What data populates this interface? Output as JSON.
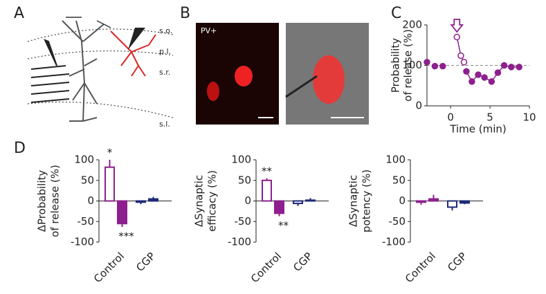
{
  "panel_labels": [
    "A",
    "B",
    "C",
    "D"
  ],
  "layer_labels": [
    "s.o.",
    "p.l.",
    "s.r.",
    "s.l."
  ],
  "image_label": "PV+",
  "chart_data": [
    {
      "type": "scatter",
      "ylabel": [
        "Probability",
        "of release (%)"
      ],
      "xlabel": "Time (min)",
      "xlim": [
        -3,
        10
      ],
      "xticks": [
        0,
        5,
        10
      ],
      "ylim": [
        0,
        200
      ],
      "yticks": [
        0,
        100,
        200
      ],
      "reference_line": 100,
      "arrow_x": 0.8,
      "color": "#8e1f8e",
      "series": [
        {
          "x": [
            -3,
            -2,
            -1
          ],
          "values": [
            108,
            98,
            98
          ],
          "marker": "filled",
          "connect": false
        },
        {
          "x": [
            0.8,
            1.3,
            1.7
          ],
          "values": [
            170,
            124,
            108
          ],
          "marker": "open",
          "connect": true
        },
        {
          "x": [
            2,
            2.7,
            3.5,
            4.3,
            5.2,
            6,
            6.8,
            7.7,
            8.7
          ],
          "values": [
            85,
            60,
            77,
            70,
            60,
            82,
            100,
            96,
            96
          ],
          "marker": "filled",
          "connect": true
        }
      ]
    },
    {
      "type": "bar",
      "ylabel": [
        "ΔProbability",
        "of release (%)"
      ],
      "categories": [
        "Control",
        "CGP"
      ],
      "colors": [
        "#8e1f8e",
        "#1e2a78"
      ],
      "ylim": [
        -100,
        100
      ],
      "yticks": [
        -100,
        -50,
        0,
        50,
        100
      ],
      "series": [
        {
          "fill": "open",
          "values": [
            82,
            -3
          ],
          "errors": [
            18,
            5
          ]
        },
        {
          "fill": "solid",
          "values": [
            -55,
            5
          ],
          "errors": [
            8,
            5
          ]
        }
      ],
      "annotations": [
        {
          "text": "*",
          "category": 0,
          "series": 0
        },
        {
          "text": "***",
          "category": 0,
          "series": 1
        }
      ]
    },
    {
      "type": "bar",
      "ylabel": [
        "ΔSynaptic",
        "efficacy (%)"
      ],
      "categories": [
        "Control",
        "CGP"
      ],
      "colors": [
        "#8e1f8e",
        "#1e2a78"
      ],
      "ylim": [
        -100,
        100
      ],
      "yticks": [
        -100,
        -50,
        0,
        50,
        100
      ],
      "series": [
        {
          "fill": "open",
          "values": [
            50,
            -6
          ],
          "errors": [
            5,
            6
          ]
        },
        {
          "fill": "solid",
          "values": [
            -30,
            2
          ],
          "errors": [
            7,
            5
          ]
        }
      ],
      "annotations": [
        {
          "text": "**",
          "category": 0,
          "series": 0
        },
        {
          "text": "**",
          "category": 0,
          "series": 1
        }
      ]
    },
    {
      "type": "bar",
      "ylabel": [
        "ΔSynaptic",
        "potency (%)"
      ],
      "categories": [
        "Control",
        "CGP"
      ],
      "colors": [
        "#8e1f8e",
        "#1e2a78"
      ],
      "ylim": [
        -100,
        100
      ],
      "yticks": [
        -100,
        -50,
        0,
        50,
        100
      ],
      "series": [
        {
          "fill": "open",
          "values": [
            -3,
            -15
          ],
          "errors": [
            6,
            8
          ]
        },
        {
          "fill": "solid",
          "values": [
            5,
            -5
          ],
          "errors": [
            10,
            3
          ]
        }
      ],
      "annotations": []
    }
  ]
}
